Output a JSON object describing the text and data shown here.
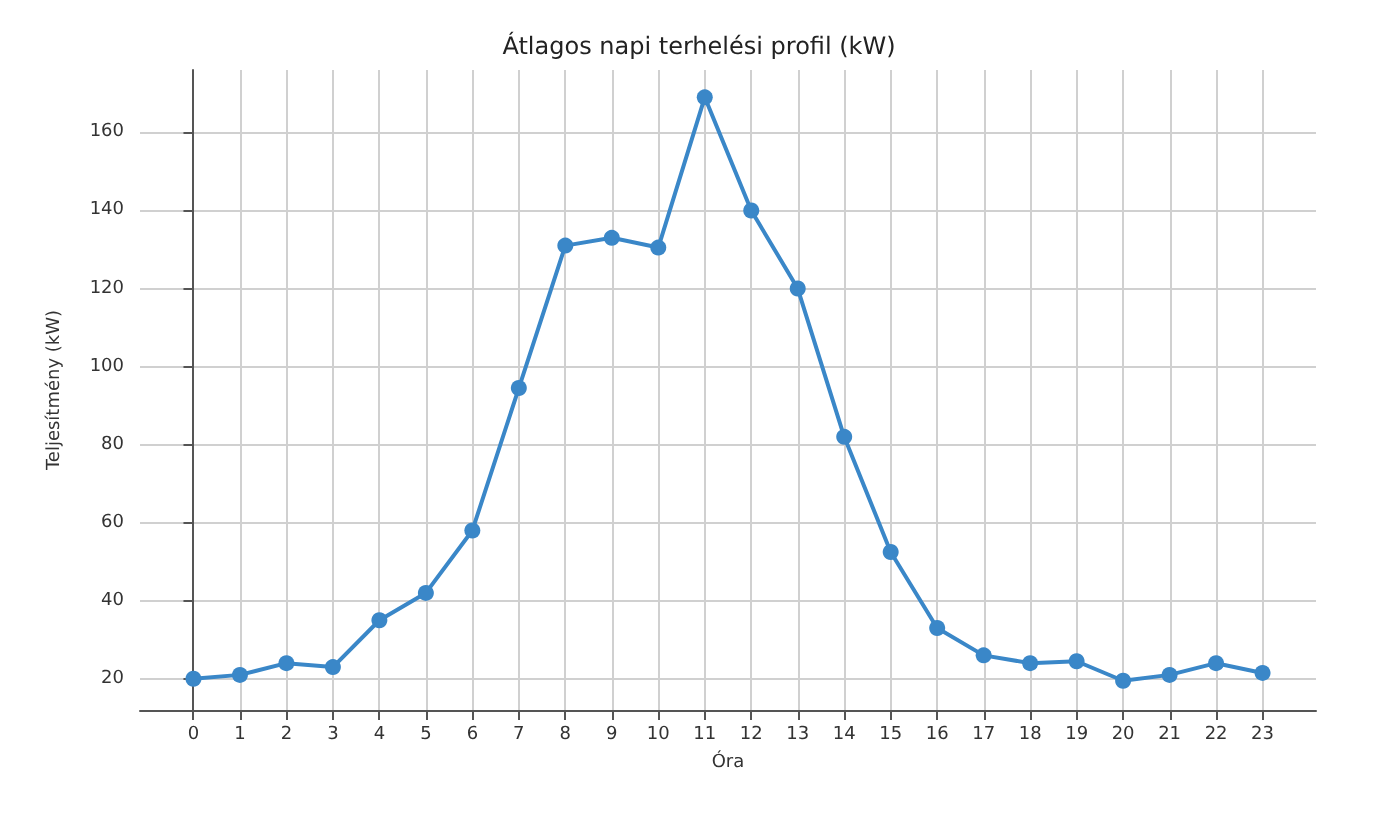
{
  "chart_data": {
    "type": "line",
    "title": "Átlagos napi terhelési profil (kW)",
    "xlabel": "Óra",
    "ylabel": "Teljesítmény (kW)",
    "x": [
      0,
      1,
      2,
      3,
      4,
      5,
      6,
      7,
      8,
      9,
      10,
      11,
      12,
      13,
      14,
      15,
      16,
      17,
      18,
      19,
      20,
      21,
      22,
      23
    ],
    "series": [
      {
        "color": "#3a87c8",
        "values": [
          20,
          21,
          24,
          23,
          35,
          42,
          58,
          94.5,
          131,
          133,
          130.5,
          169,
          140,
          120,
          82,
          52.5,
          33,
          26,
          24,
          24.5,
          19.5,
          21,
          24,
          21.5
        ]
      }
    ],
    "xlim": [
      -1.15,
      24.15
    ],
    "xticks": [
      0,
      1,
      2,
      3,
      4,
      5,
      6,
      7,
      8,
      9,
      10,
      11,
      12,
      13,
      14,
      15,
      16,
      17,
      18,
      19,
      20,
      21,
      22,
      23
    ],
    "ylim": [
      12,
      176
    ],
    "yticks": [
      20,
      40,
      60,
      80,
      100,
      120,
      140,
      160
    ],
    "grid": true,
    "marker": "circle",
    "line_style": "solid"
  }
}
